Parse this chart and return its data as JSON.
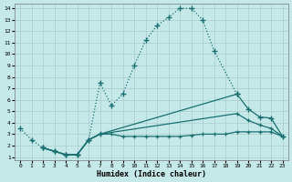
{
  "xlabel": "Humidex (Indice chaleur)",
  "bg_color": "#c5e8e8",
  "line_color": "#1a7070",
  "grid_color": "#aacccc",
  "xlim": [
    -0.5,
    23.5
  ],
  "ylim": [
    0.7,
    14.4
  ],
  "xticks": [
    0,
    1,
    2,
    3,
    4,
    5,
    6,
    7,
    8,
    9,
    10,
    11,
    12,
    13,
    14,
    15,
    16,
    17,
    18,
    19,
    20,
    21,
    22,
    23
  ],
  "yticks": [
    1,
    2,
    3,
    4,
    5,
    6,
    7,
    8,
    9,
    10,
    11,
    12,
    13,
    14
  ],
  "main_x": [
    0,
    1,
    2,
    3,
    4,
    5,
    6,
    7,
    8,
    9,
    10,
    11,
    12,
    13,
    14,
    15,
    16,
    17,
    19
  ],
  "main_y": [
    3.5,
    2.5,
    1.8,
    1.5,
    1.2,
    1.2,
    2.5,
    7.5,
    5.5,
    6.5,
    9.0,
    11.2,
    12.5,
    13.2,
    14.0,
    14.0,
    13.0,
    10.3,
    6.5
  ],
  "line2_x": [
    2,
    3,
    4,
    5,
    6,
    7,
    19,
    20,
    21,
    22,
    23
  ],
  "line2_y": [
    1.8,
    1.5,
    1.2,
    1.2,
    2.5,
    3.0,
    6.5,
    5.2,
    4.5,
    4.4,
    2.8
  ],
  "line3_x": [
    2,
    3,
    4,
    5,
    6,
    7,
    19,
    20,
    21,
    22,
    23
  ],
  "line3_y": [
    1.8,
    1.5,
    1.2,
    1.2,
    2.5,
    3.0,
    4.8,
    4.2,
    3.8,
    3.5,
    2.8
  ],
  "line4_x": [
    2,
    3,
    4,
    5,
    6,
    7,
    8,
    9,
    10,
    11,
    12,
    13,
    14,
    15,
    16,
    17,
    18,
    19,
    20,
    21,
    22,
    23
  ],
  "line4_y": [
    1.8,
    1.5,
    1.2,
    1.2,
    2.5,
    3.0,
    3.0,
    2.8,
    2.8,
    2.8,
    2.8,
    2.8,
    2.8,
    2.9,
    3.0,
    3.0,
    3.0,
    3.2,
    3.2,
    3.2,
    3.2,
    2.8
  ]
}
